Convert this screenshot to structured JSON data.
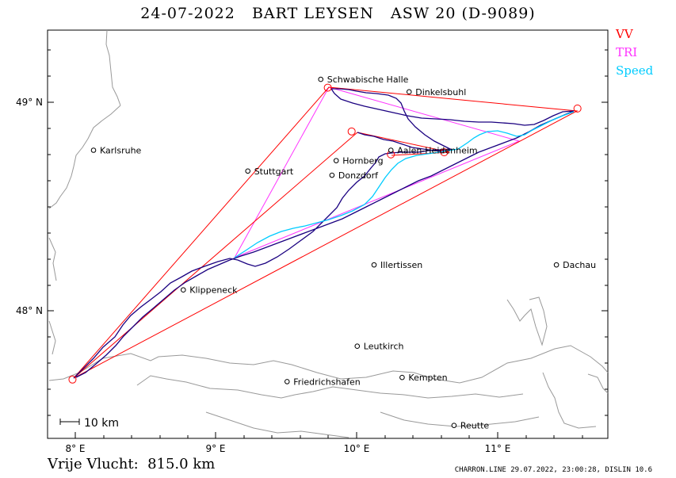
{
  "header": {
    "title": "24-07-2022   BART LEYSEN   ASW 20 (D-9089)"
  },
  "legend": [
    {
      "label": "VV",
      "color": "#ff0000"
    },
    {
      "label": "TRI",
      "color": "#ff33ff"
    },
    {
      "label": "Speed",
      "color": "#00ccff"
    }
  ],
  "axes": {
    "x_ticks": [
      "8° E",
      "9° E",
      "10° E",
      "11° E"
    ],
    "y_ticks": [
      "49° N",
      "48° N"
    ]
  },
  "scale_bar": {
    "label": "10 km"
  },
  "towns": [
    {
      "name": "Schwabische Halle",
      "lon": 9.75,
      "lat": 49.11
    },
    {
      "name": "Dinkelsbuhl",
      "lon": 10.38,
      "lat": 49.05
    },
    {
      "name": "Karlsruhe",
      "lon": 8.13,
      "lat": 48.77
    },
    {
      "name": "Stuttgart",
      "lon": 9.23,
      "lat": 48.67
    },
    {
      "name": "Hornberg",
      "lon": 9.86,
      "lat": 48.72
    },
    {
      "name": "Donzdorf",
      "lon": 9.83,
      "lat": 48.65
    },
    {
      "name": "Aalen-Heidenheim",
      "lon": 10.25,
      "lat": 48.77
    },
    {
      "name": "Illertissen",
      "lon": 10.13,
      "lat": 48.22
    },
    {
      "name": "Dachau",
      "lon": 11.43,
      "lat": 48.22
    },
    {
      "name": "Klippeneck",
      "lon": 8.77,
      "lat": 48.1
    },
    {
      "name": "Leutkirch",
      "lon": 10.01,
      "lat": 47.83
    },
    {
      "name": "Kempten",
      "lon": 10.33,
      "lat": 47.68
    },
    {
      "name": "Friedrichshafen",
      "lon": 9.51,
      "lat": 47.66
    },
    {
      "name": "Reutte",
      "lon": 10.7,
      "lat": 47.45
    }
  ],
  "turnpoints": [
    {
      "lon": 7.98,
      "lat": 47.67
    },
    {
      "lon": 9.8,
      "lat": 49.07
    },
    {
      "lon": 11.58,
      "lat": 48.97
    },
    {
      "lon": 9.97,
      "lat": 48.86
    },
    {
      "lon": 10.63,
      "lat": 48.76
    },
    {
      "lon": 10.25,
      "lat": 48.75
    }
  ],
  "footer": {
    "distance_label": "Vrije Vlucht:  815.0 km",
    "credit": "CHARRON.LINE 29.07.2022, 23:00:28, DISLIN 10.6"
  }
}
